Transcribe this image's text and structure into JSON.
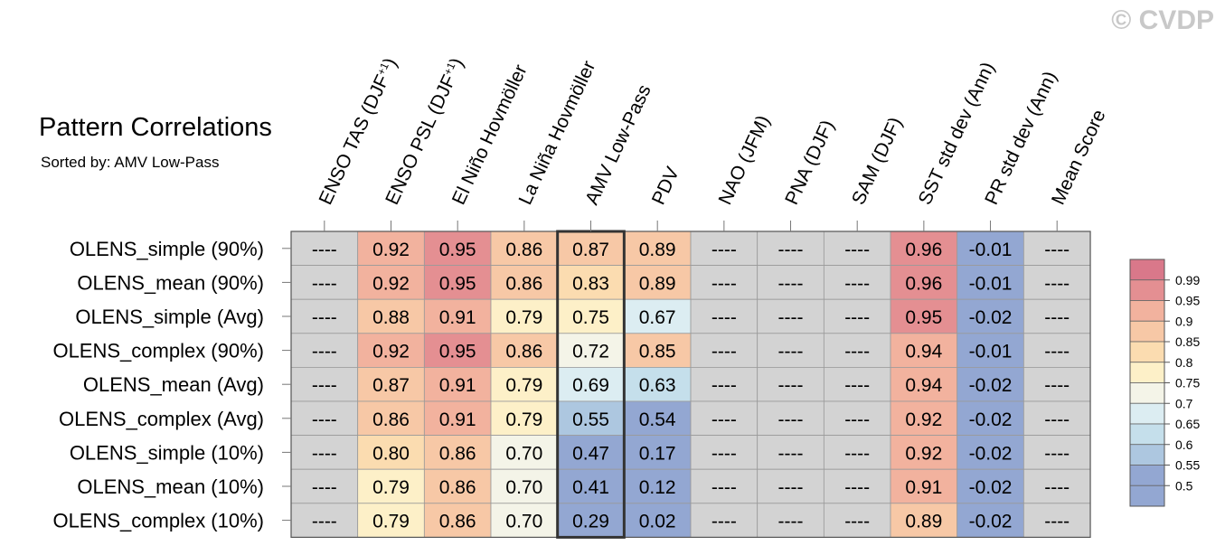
{
  "header": {
    "title": "Pattern Correlations",
    "subtitle": "Sorted by: AMV Low-Pass",
    "copyright": "© CVDP"
  },
  "chart_data": {
    "type": "heatmap",
    "columns": [
      "ENSO TAS (DJF+1)",
      "ENSO PSL (DJF+1)",
      "El Niño Hovmöller",
      "La Niña Hovmöller",
      "AMV Low-Pass",
      "PDV",
      "NAO (JFM)",
      "PNA (DJF)",
      "SAM (DJF)",
      "SST std dev (Ann)",
      "PR std dev (Ann)",
      "Mean Score"
    ],
    "sorted_by_column": "AMV Low-Pass",
    "rows": [
      {
        "label": "OLENS_simple (90%)",
        "values": [
          "----",
          "0.92",
          "0.95",
          "0.86",
          "0.87",
          "0.89",
          "----",
          "----",
          "----",
          "0.96",
          "-0.01",
          "----"
        ]
      },
      {
        "label": "OLENS_mean (90%)",
        "values": [
          "----",
          "0.92",
          "0.95",
          "0.86",
          "0.83",
          "0.89",
          "----",
          "----",
          "----",
          "0.96",
          "-0.01",
          "----"
        ]
      },
      {
        "label": "OLENS_simple (Avg)",
        "values": [
          "----",
          "0.88",
          "0.91",
          "0.79",
          "0.75",
          "0.67",
          "----",
          "----",
          "----",
          "0.95",
          "-0.02",
          "----"
        ]
      },
      {
        "label": "OLENS_complex (90%)",
        "values": [
          "----",
          "0.92",
          "0.95",
          "0.86",
          "0.72",
          "0.85",
          "----",
          "----",
          "----",
          "0.94",
          "-0.01",
          "----"
        ]
      },
      {
        "label": "OLENS_mean (Avg)",
        "values": [
          "----",
          "0.87",
          "0.91",
          "0.79",
          "0.69",
          "0.63",
          "----",
          "----",
          "----",
          "0.94",
          "-0.02",
          "----"
        ]
      },
      {
        "label": "OLENS_complex (Avg)",
        "values": [
          "----",
          "0.86",
          "0.91",
          "0.79",
          "0.55",
          "0.54",
          "----",
          "----",
          "----",
          "0.92",
          "-0.02",
          "----"
        ]
      },
      {
        "label": "OLENS_simple (10%)",
        "values": [
          "----",
          "0.80",
          "0.86",
          "0.70",
          "0.47",
          "0.17",
          "----",
          "----",
          "----",
          "0.92",
          "-0.02",
          "----"
        ]
      },
      {
        "label": "OLENS_mean (10%)",
        "values": [
          "----",
          "0.79",
          "0.86",
          "0.70",
          "0.41",
          "0.12",
          "----",
          "----",
          "----",
          "0.91",
          "-0.02",
          "----"
        ]
      },
      {
        "label": "OLENS_complex (10%)",
        "values": [
          "----",
          "0.79",
          "0.86",
          "0.70",
          "0.29",
          "0.02",
          "----",
          "----",
          "----",
          "0.89",
          "-0.02",
          "----"
        ]
      }
    ],
    "colorbar": {
      "ticks": [
        "0.99",
        "0.95",
        "0.9",
        "0.85",
        "0.8",
        "0.75",
        "0.7",
        "0.65",
        "0.6",
        "0.55",
        "0.5"
      ],
      "colors_top_to_bottom": [
        "#d9788a",
        "#e48f92",
        "#f2b29e",
        "#f7c8a6",
        "#fbdcb0",
        "#fdf0c8",
        "#f4f4e8",
        "#dcedf2",
        "#c5dfeb",
        "#adc7e0",
        "#93a7d2",
        "#93a7d2"
      ],
      "missing_color": "#d3d3d3"
    }
  }
}
